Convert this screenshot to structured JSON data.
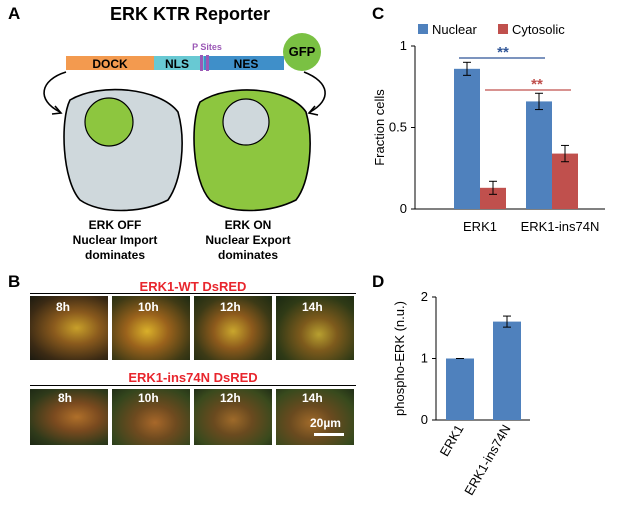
{
  "panels": {
    "A": "A",
    "B": "B",
    "C": "C",
    "D": "D"
  },
  "panelA": {
    "title": "ERK KTR Reporter",
    "construct": {
      "dock": "DOCK",
      "nls": "NLS",
      "nes": "NES",
      "psites": "P Sites",
      "gfp": "GFP"
    },
    "cell_off": {
      "line1": "ERK OFF",
      "line2": "Nuclear Import",
      "line3": "dominates"
    },
    "cell_on": {
      "line1": "ERK ON",
      "line2": "Nuclear Export",
      "line3": "dominates"
    },
    "colors": {
      "dock": "#f39a4f",
      "nls": "#68c9d3",
      "nes": "#3f8fc9",
      "psite": "#9b59b6",
      "gfp": "#7ac143",
      "cell_gray": "#cfd8dc",
      "cell_green": "#8dc63f"
    }
  },
  "panelB": {
    "wt_title": "ERK1-WT DsRED",
    "mut_title": "ERK1-ins74N DsRED",
    "times": [
      "8h",
      "10h",
      "12h",
      "14h"
    ],
    "scale_bar": "20µm",
    "title_color": "#e8262d"
  },
  "chartC": {
    "type": "bar",
    "categories": [
      "ERK1",
      "ERK1-ins74N"
    ],
    "series": [
      {
        "name": "Nuclear",
        "values": [
          0.86,
          0.66
        ],
        "errors": [
          0.04,
          0.05
        ],
        "color": "#4f81bd"
      },
      {
        "name": "Cytosolic",
        "values": [
          0.13,
          0.34
        ],
        "errors": [
          0.04,
          0.05
        ],
        "color": "#c0504d"
      }
    ],
    "ylabel": "Fraction cells",
    "yticks": [
      "0",
      "0.5",
      "1"
    ],
    "ylim": [
      0,
      1.0
    ],
    "significance": [
      {
        "label": "**",
        "color": "#2f5597",
        "from": "ERK1 Nuclear",
        "to": "ERK1-ins74N Nuclear"
      },
      {
        "label": "**",
        "color": "#c0504d",
        "from": "ERK1 Cytosolic",
        "to": "ERK1-ins74N Cytosolic"
      }
    ],
    "legend_position": "top"
  },
  "chartD": {
    "type": "bar",
    "categories": [
      "ERK1",
      "ERK1-ins74N"
    ],
    "values": [
      1.0,
      1.6
    ],
    "errors": [
      0.0,
      0.09
    ],
    "color": "#4f81bd",
    "ylabel": "phospho-ERK (n.u.)",
    "yticks": [
      "0",
      "1",
      "2"
    ],
    "ylim": [
      0,
      2
    ]
  },
  "chart_data": [
    {
      "type": "bar",
      "categories": [
        "ERK1",
        "ERK1-ins74N"
      ],
      "series": [
        {
          "name": "Nuclear",
          "values": [
            0.86,
            0.66
          ]
        },
        {
          "name": "Cytosolic",
          "values": [
            0.13,
            0.34
          ]
        }
      ],
      "title": "",
      "xlabel": "",
      "ylabel": "Fraction cells",
      "ylim": [
        0,
        1
      ]
    },
    {
      "type": "bar",
      "categories": [
        "ERK1",
        "ERK1-ins74N"
      ],
      "values": [
        1.0,
        1.6
      ],
      "title": "",
      "xlabel": "",
      "ylabel": "phospho-ERK (n.u.)",
      "ylim": [
        0,
        2
      ]
    }
  ]
}
